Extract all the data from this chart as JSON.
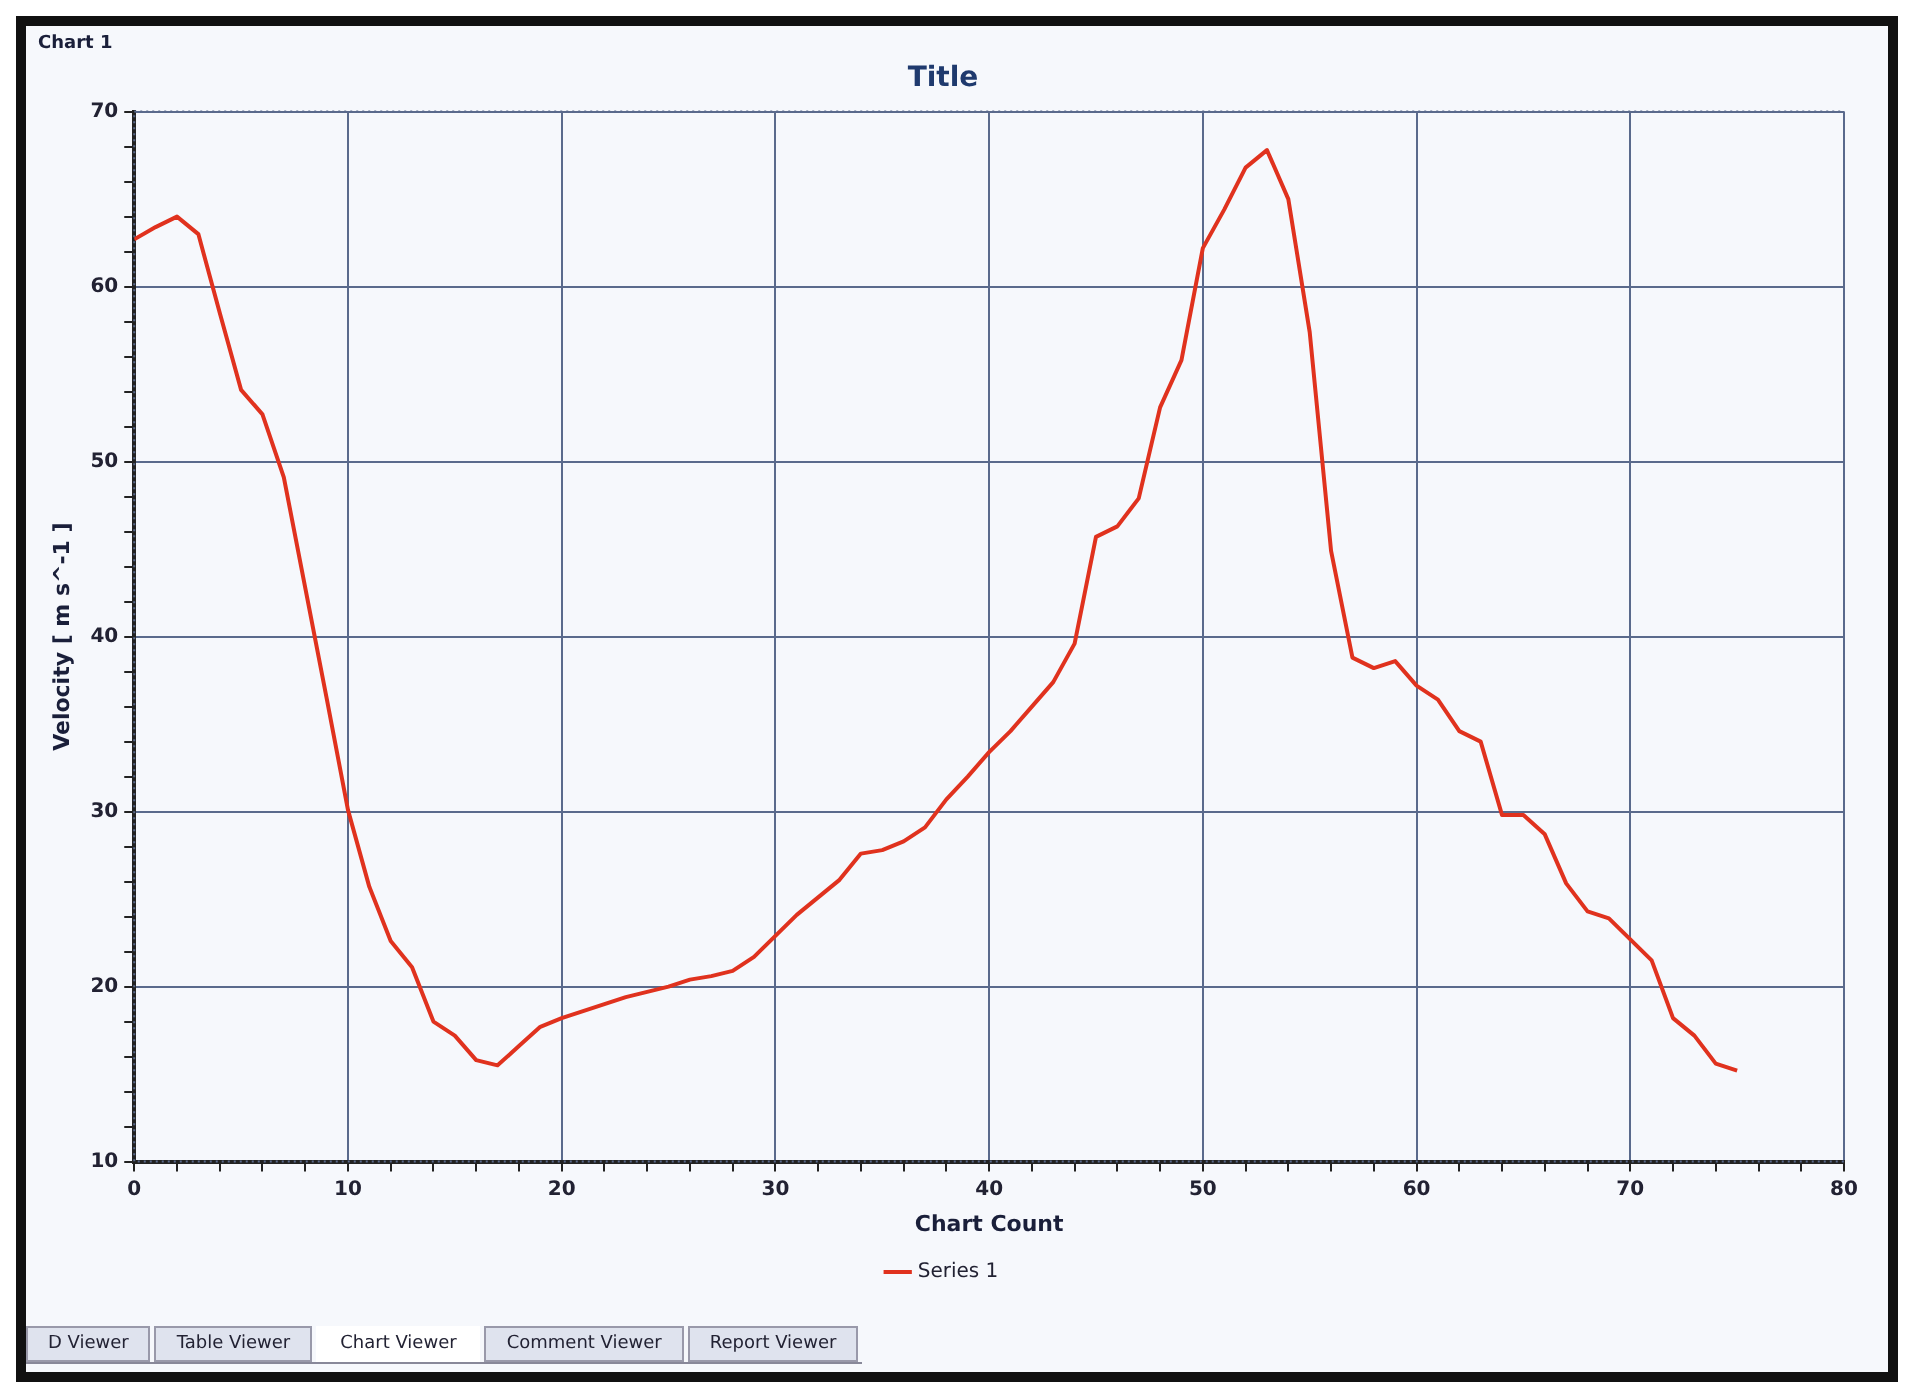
{
  "chart_data": {
    "type": "line",
    "title": "Title",
    "xlabel": "Chart Count",
    "ylabel": "Velocity [ m s^-1 ]",
    "annotations": [
      "Chart 1",
      "D Viewer",
      "Table Viewer",
      "Chart Viewer",
      "Comment Viewer",
      "Report Viewer"
    ],
    "x": [
      0,
      1,
      2,
      3,
      4,
      5,
      6,
      7,
      8,
      9,
      10,
      11,
      12,
      13,
      14,
      15,
      16,
      17,
      18,
      19,
      20,
      21,
      22,
      23,
      24,
      25,
      26,
      27,
      28,
      29,
      30,
      31,
      32,
      33,
      34,
      35,
      36,
      37,
      38,
      39,
      40,
      41,
      42,
      43,
      44,
      45,
      46,
      47,
      48,
      49,
      50,
      51,
      52,
      53,
      54,
      55,
      56,
      57,
      58,
      59,
      60,
      61,
      62,
      63,
      64,
      65,
      66,
      67,
      68,
      69,
      70,
      71,
      72,
      73,
      74,
      75
    ],
    "series": [
      {
        "name": "Series 1",
        "color": "#e0321e",
        "values": [
          62.7,
          63.4,
          64.0,
          63.0,
          58.5,
          54.1,
          52.7,
          49.1,
          42.8,
          36.5,
          30.1,
          25.7,
          22.6,
          21.1,
          18.0,
          17.2,
          15.8,
          15.5,
          16.6,
          17.7,
          18.2,
          18.6,
          19.0,
          19.4,
          19.7,
          20.0,
          20.4,
          20.6,
          20.9,
          21.7,
          22.9,
          24.1,
          25.1,
          26.1,
          27.6,
          27.8,
          28.3,
          29.1,
          30.7,
          32.0,
          33.4,
          34.6,
          36.0,
          37.4,
          39.6,
          45.7,
          46.3,
          47.9,
          53.1,
          55.8,
          62.2,
          64.4,
          66.8,
          67.8,
          65.0,
          57.4,
          44.9,
          38.8,
          38.2,
          38.6,
          37.2,
          36.4,
          34.6,
          34.0,
          29.8,
          29.8,
          28.7,
          25.9,
          24.3,
          23.9,
          22.7,
          21.5,
          18.2,
          17.2,
          15.6,
          15.2
        ]
      }
    ],
    "xlim": [
      0,
      80
    ],
    "xticks": [
      0,
      {
        "value": 2,
        "label": null
      },
      {
        "value": 4,
        "label": null
      },
      {
        "value": 6,
        "label": null
      },
      {
        "value": 8,
        "label": null
      },
      10,
      {
        "value": 12,
        "label": null
      },
      {
        "value": 14,
        "label": null
      },
      {
        "value": 16,
        "label": null
      },
      {
        "value": 18,
        "label": null
      },
      20,
      {
        "value": 22,
        "label": null
      },
      {
        "value": 24,
        "label": null
      },
      {
        "value": 26,
        "label": null
      },
      {
        "value": 28,
        "label": null
      },
      30,
      {
        "value": 32,
        "label": null
      },
      {
        "value": 34,
        "label": null
      },
      {
        "value": 36,
        "label": null
      },
      {
        "value": 38,
        "label": null
      },
      40,
      {
        "value": 42,
        "label": null
      },
      {
        "value": 44,
        "label": null
      },
      {
        "value": 46,
        "label": null
      },
      {
        "value": 48,
        "label": null
      },
      50,
      {
        "value": 52,
        "label": null
      },
      {
        "value": 54,
        "label": null
      },
      {
        "value": 56,
        "label": null
      },
      {
        "value": 58,
        "label": null
      },
      60,
      {
        "value": 62,
        "label": null
      },
      {
        "value": 64,
        "label": null
      },
      {
        "value": 66,
        "label": null
      },
      {
        "value": 68,
        "label": null
      },
      70,
      {
        "value": 72,
        "label": null
      },
      {
        "value": 74,
        "label": null
      },
      {
        "value": 76,
        "label": null
      },
      {
        "value": 78,
        "label": null
      },
      80
    ],
    "ylim": [
      10,
      70
    ],
    "yticks": [
      10,
      {
        "value": 12,
        "label": null
      },
      {
        "value": 14,
        "label": null
      },
      {
        "value": 16,
        "label": null
      },
      {
        "value": 18,
        "label": null
      },
      20,
      {
        "value": 22,
        "label": null
      },
      {
        "value": 24,
        "label": null
      },
      {
        "value": 26,
        "label": null
      },
      {
        "value": 28,
        "label": null
      },
      30,
      {
        "value": 32,
        "label": null
      },
      {
        "value": 34,
        "label": null
      },
      {
        "value": 36,
        "label": null
      },
      {
        "value": 38,
        "label": null
      },
      40,
      {
        "value": 42,
        "label": null
      },
      {
        "value": 44,
        "label": null
      },
      {
        "value": 46,
        "label": null
      },
      {
        "value": 48,
        "label": null
      },
      50,
      {
        "value": 52,
        "label": null
      },
      {
        "value": 54,
        "label": null
      },
      {
        "value": 56,
        "label": null
      },
      {
        "value": 58,
        "label": null
      },
      60,
      {
        "value": 62,
        "label": null
      },
      {
        "value": 64,
        "label": null
      },
      {
        "value": 66,
        "label": null
      },
      {
        "value": 68,
        "label": null
      },
      70
    ],
    "grid": true,
    "legend": "bottom",
    "marker": "none",
    "line_style": "solid"
  }
}
